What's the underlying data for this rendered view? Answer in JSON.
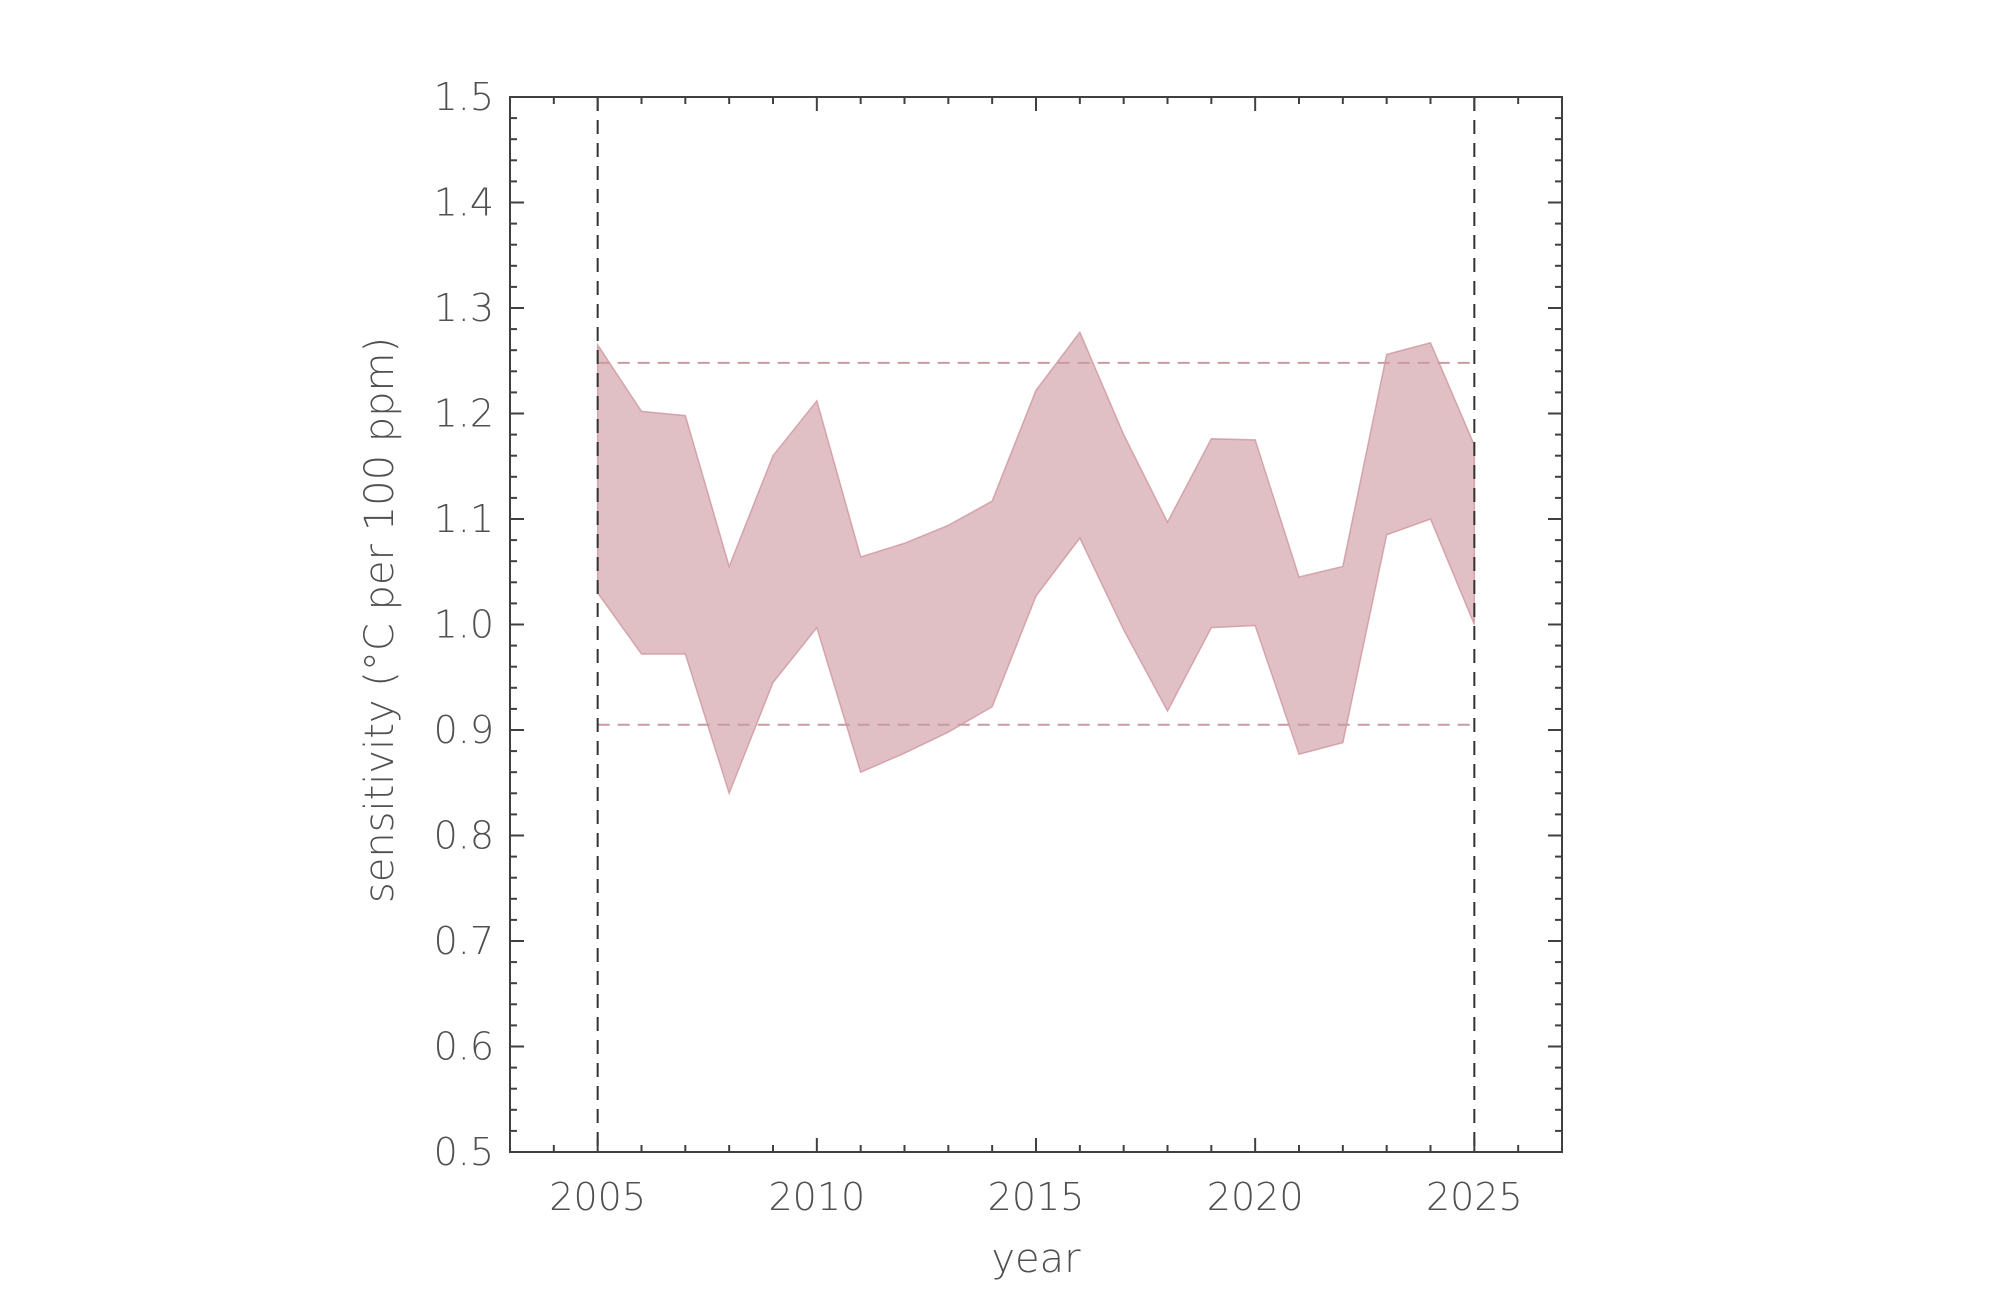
{
  "chart_data": {
    "type": "area",
    "xlabel": "year",
    "ylabel": "sensitivity (°C per 100 ppm)",
    "xlim": [
      2003,
      2027
    ],
    "ylim": [
      0.5,
      1.5
    ],
    "xticks": [
      "2005",
      "2010",
      "2015",
      "2020",
      "2025"
    ],
    "yticks": [
      "0.5",
      "0.6",
      "0.7",
      "0.8",
      "0.9",
      "1.0",
      "1.1",
      "1.2",
      "1.3",
      "1.4",
      "1.5"
    ],
    "grid": false,
    "band": {
      "x": [
        2005,
        2006,
        2007,
        2008,
        2009,
        2010,
        2011,
        2012,
        2013,
        2014,
        2015,
        2016,
        2017,
        2018,
        2019,
        2020,
        2021,
        2022,
        2023,
        2024,
        2025
      ],
      "upper": [
        1.265,
        1.202,
        1.198,
        1.055,
        1.16,
        1.212,
        1.064,
        1.077,
        1.094,
        1.117,
        1.222,
        1.277,
        1.18,
        1.097,
        1.176,
        1.175,
        1.045,
        1.055,
        1.256,
        1.267,
        1.17
      ],
      "lower": [
        1.03,
        0.972,
        0.972,
        0.84,
        0.945,
        0.997,
        0.86,
        0.878,
        0.898,
        0.922,
        1.027,
        1.082,
        0.995,
        0.918,
        0.997,
        0.999,
        0.877,
        0.888,
        1.085,
        1.1,
        1.0
      ],
      "color": "#c98d95"
    },
    "reference_lines": {
      "horizontal": [
        1.248,
        0.905
      ],
      "horizontal_color": "#c99aa0",
      "vertical": [
        2005,
        2025
      ],
      "vertical_color": "#333333"
    },
    "axis_color": "#404040"
  }
}
